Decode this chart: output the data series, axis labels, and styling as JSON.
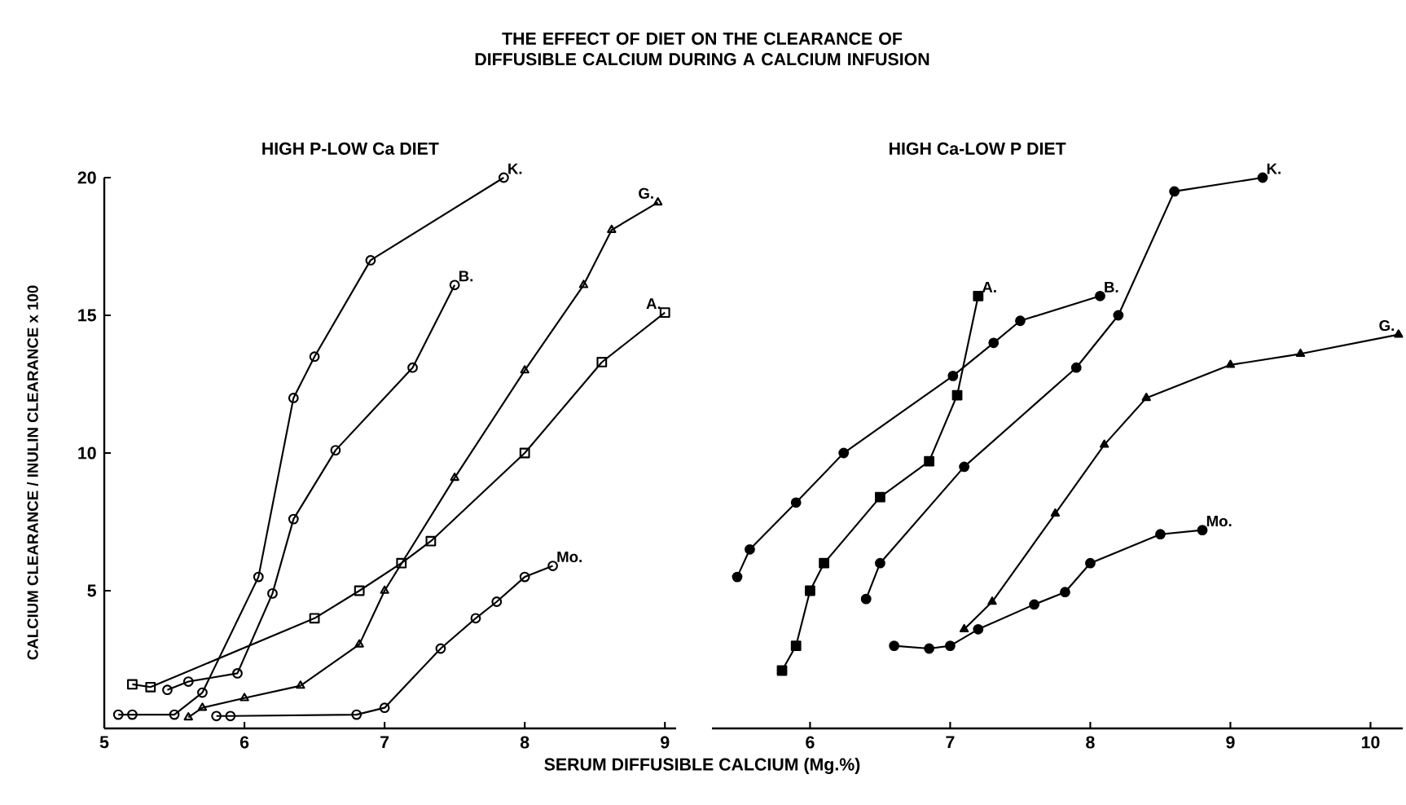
{
  "chart_data": [
    {
      "type": "line",
      "title": "THE EFFECT OF DIET ON THE CLEARANCE OF DIFFUSIBLE CALCIUM DURING A CALCIUM INFUSION",
      "subtitle": "HIGH P-LOW Ca DIET",
      "xlabel": "SERUM  DIFFUSIBLE  CALCIUM (Mg.%)",
      "ylabel": "CALCIUM CLEARANCE / INULIN CLEARANCE x 100",
      "xlim": [
        5,
        9.08
      ],
      "ylim": [
        0,
        20
      ],
      "xticks": [
        5,
        6,
        7,
        8,
        9
      ],
      "yticks": [
        5,
        10,
        15,
        20
      ],
      "grid": false,
      "legend": false,
      "line_style": "solid",
      "series": [
        {
          "name": "K.",
          "color": "#000000",
          "marker": "circle",
          "x": [
            5.1,
            5.2,
            5.5,
            5.7,
            6.1,
            6.35,
            6.5,
            6.9,
            7.85
          ],
          "values": [
            0.5,
            0.5,
            0.5,
            1.3,
            5.5,
            12,
            13.5,
            17,
            20
          ]
        },
        {
          "name": "B.",
          "color": "#000000",
          "marker": "circle",
          "x": [
            5.45,
            5.6,
            5.95,
            6.2,
            6.35,
            6.65,
            7.2,
            7.5
          ],
          "values": [
            1.4,
            1.7,
            2.0,
            4.9,
            7.6,
            10.1,
            13.1,
            16.1
          ]
        },
        {
          "name": "G.",
          "color": "#000000",
          "marker": "triangle",
          "x": [
            5.6,
            5.7,
            6.0,
            6.4,
            6.82,
            7.0,
            7.5,
            8.0,
            8.42,
            8.62,
            8.95
          ],
          "values": [
            0.4,
            0.75,
            1.1,
            1.55,
            3.05,
            5.0,
            9.1,
            13,
            16.1,
            18.1,
            19.1
          ]
        },
        {
          "name": "A.",
          "color": "#000000",
          "marker": "square",
          "x": [
            5.2,
            5.33,
            6.5,
            6.82,
            7.12,
            7.33,
            8.0,
            8.55,
            9.0
          ],
          "values": [
            1.6,
            1.5,
            4.0,
            5.0,
            6.0,
            6.8,
            10.0,
            13.3,
            15.1
          ]
        },
        {
          "name": "Mo.",
          "color": "#000000",
          "marker": "circle",
          "x": [
            5.8,
            5.9,
            6.8,
            7.0,
            7.4,
            7.65,
            7.8,
            8.0,
            8.2
          ],
          "values": [
            0.45,
            0.45,
            0.5,
            0.75,
            2.9,
            4.0,
            4.6,
            5.5,
            5.9
          ]
        }
      ]
    },
    {
      "type": "line",
      "subtitle": "HIGH Ca-LOW P DIET",
      "xlim": [
        5.3,
        10.23
      ],
      "ylim": [
        0,
        20
      ],
      "yticks": [
        5,
        10,
        15,
        20
      ],
      "xticks": [
        6,
        7,
        8,
        9,
        10
      ],
      "tick_labels": "x",
      "grid": false,
      "legend": false,
      "line_style": "solid",
      "series": [
        {
          "name": "A.",
          "color": "#000000",
          "marker": "square",
          "x": [
            5.8,
            5.9,
            6.0,
            6.1,
            6.5,
            6.85,
            7.05,
            7.2
          ],
          "values": [
            2.1,
            3.0,
            5.0,
            6.0,
            8.4,
            9.7,
            12.1,
            15.7
          ]
        },
        {
          "name": "B.",
          "color": "#000000",
          "marker": "circle",
          "x": [
            5.48,
            5.57,
            5.9,
            6.24,
            7.02,
            7.31,
            7.5,
            8.07
          ],
          "values": [
            5.5,
            6.5,
            8.2,
            10,
            12.8,
            14,
            14.8,
            15.7
          ]
        },
        {
          "name": "K.",
          "color": "#000000",
          "marker": "circle",
          "x": [
            6.4,
            6.5,
            7.1,
            7.9,
            8.2,
            8.6,
            9.23
          ],
          "values": [
            4.7,
            6.0,
            9.5,
            13.1,
            15.0,
            19.5,
            20
          ]
        },
        {
          "name": "G.",
          "color": "#000000",
          "marker": "triangle",
          "x": [
            7.1,
            7.3,
            7.75,
            8.1,
            8.4,
            9.0,
            9.5,
            10.2
          ],
          "values": [
            3.6,
            4.6,
            7.8,
            10.3,
            12,
            13.2,
            13.6,
            14.3
          ]
        },
        {
          "name": "Mo.",
          "color": "#000000",
          "marker": "circle",
          "x": [
            6.6,
            6.85,
            7.0,
            7.2,
            7.6,
            7.82,
            8.0,
            8.5,
            8.8
          ],
          "values": [
            3.0,
            2.9,
            3.0,
            3.6,
            4.5,
            4.95,
            6.0,
            7.05,
            7.2
          ]
        }
      ]
    }
  ]
}
